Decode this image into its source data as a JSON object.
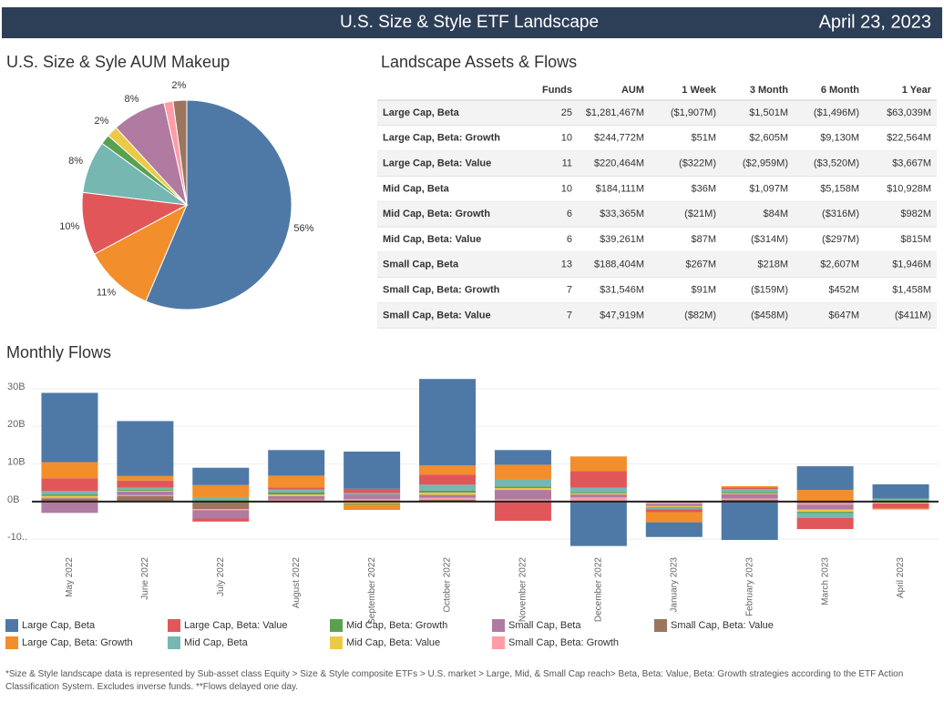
{
  "header": {
    "title": "U.S. Size & Style ETF Landscape",
    "date": "April 23, 2023"
  },
  "chart_data": [
    {
      "type": "pie",
      "title": "U.S. Size & Syle AUM Makeup",
      "values": [
        56.4,
        10.8,
        9.7,
        8.1,
        1.5,
        1.7,
        8.3,
        1.4,
        2.1
      ],
      "value_labels": [
        "56%",
        "11%",
        "10%",
        "8%",
        null,
        "2%",
        "8%",
        null,
        "2%"
      ],
      "colors": [
        "#4e79a7",
        "#f28e2b",
        "#e15759",
        "#76b7b2",
        "#59a14f",
        "#edc948",
        "#b07aa1",
        "#ff9da7",
        "#9c755f"
      ]
    },
    {
      "type": "bar",
      "stacked": true,
      "title": "Monthly Flows",
      "categories": [
        "May 2022",
        "June 2022",
        "July 2022",
        "August 2022",
        "September 2022",
        "October 2022",
        "November 2022",
        "December 2022",
        "January 2023",
        "February 2023",
        "March 2023",
        "April 2023"
      ],
      "ylim": [
        -14.3,
        34.1
      ],
      "yticks": [
        {
          "value": -10,
          "label": "-10.."
        },
        {
          "value": 0,
          "label": "0B"
        },
        {
          "value": 10,
          "label": "10B"
        },
        {
          "value": 20,
          "label": "20B"
        },
        {
          "value": 30,
          "label": "30B"
        }
      ],
      "grid": true,
      "series": [
        {
          "name": "Large Cap, Beta",
          "color": "#4e79a7",
          "values": [
            18.4,
            14.6,
            4.6,
            6.8,
            9.9,
            23.0,
            3.9,
            -11.8,
            -3.9,
            -10.2,
            6.3,
            3.8
          ]
        },
        {
          "name": "Large Cap, Beta: Growth",
          "color": "#f28e2b",
          "values": [
            4.3,
            1.2,
            3.2,
            3.1,
            -1.4,
            2.4,
            3.9,
            3.9,
            -2.7,
            0.3,
            3.1,
            -0.3
          ]
        },
        {
          "name": "Large Cap, Beta: Value",
          "color": "#e15759",
          "values": [
            3.4,
            1.9,
            -0.8,
            0.6,
            1.1,
            2.7,
            -5.1,
            4.4,
            -0.8,
            0.5,
            -3.0,
            -1.3
          ]
        },
        {
          "name": "Mid Cap, Beta",
          "color": "#76b7b2",
          "values": [
            0.9,
            0.5,
            0.8,
            0.8,
            0.4,
            1.6,
            1.9,
            1.2,
            -0.3,
            0.8,
            -1.2,
            0.4
          ]
        },
        {
          "name": "Mid Cap, Beta: Growth",
          "color": "#59a14f",
          "values": [
            0.4,
            0.3,
            0.2,
            0.5,
            -0.3,
            0.5,
            0.4,
            0.3,
            -0.2,
            0.3,
            -0.4,
            0.2
          ]
        },
        {
          "name": "Mid Cap, Beta: Value",
          "color": "#edc948",
          "values": [
            0.3,
            0.2,
            0.2,
            0.4,
            -0.5,
            0.6,
            0.5,
            0.3,
            -0.3,
            0.2,
            -0.6,
            -0.1
          ]
        },
        {
          "name": "Small Cap, Beta",
          "color": "#b07aa1",
          "values": [
            -3.0,
            1.0,
            -2.2,
            1.0,
            1.2,
            0.8,
            2.5,
            0.8,
            -0.6,
            1.2,
            -1.3,
            0.2
          ]
        },
        {
          "name": "Small Cap, Beta: Growth",
          "color": "#ff9da7",
          "values": [
            0.3,
            0.2,
            -0.3,
            0.2,
            0.4,
            0.5,
            0.3,
            0.8,
            -0.3,
            0.3,
            -0.4,
            -0.1
          ]
        },
        {
          "name": "Small Cap, Beta: Value",
          "color": "#9c755f",
          "values": [
            0.9,
            1.5,
            -2.0,
            0.3,
            0.3,
            0.5,
            0.3,
            0.3,
            -0.3,
            0.5,
            -0.4,
            -0.3
          ]
        }
      ]
    }
  ],
  "table": {
    "title": "Landscape Assets & Flows",
    "columns": [
      "Funds",
      "AUM",
      "1 Week",
      "3 Month",
      "6 Month",
      "1 Year"
    ],
    "rows": [
      [
        "Large Cap, Beta",
        "25",
        "$1,281,467M",
        "($1,907M)",
        "$1,501M",
        "($1,496M)",
        "$63,039M"
      ],
      [
        "Large Cap, Beta: Growth",
        "10",
        "$244,772M",
        "$51M",
        "$2,605M",
        "$9,130M",
        "$22,564M"
      ],
      [
        "Large Cap, Beta: Value",
        "11",
        "$220,464M",
        "($322M)",
        "($2,959M)",
        "($3,520M)",
        "$3,667M"
      ],
      [
        "Mid Cap, Beta",
        "10",
        "$184,111M",
        "$36M",
        "$1,097M",
        "$5,158M",
        "$10,928M"
      ],
      [
        "Mid Cap, Beta: Growth",
        "6",
        "$33,365M",
        "($21M)",
        "$84M",
        "($316M)",
        "$982M"
      ],
      [
        "Mid Cap, Beta: Value",
        "6",
        "$39,261M",
        "$87M",
        "($314M)",
        "($297M)",
        "$815M"
      ],
      [
        "Small Cap, Beta",
        "13",
        "$188,404M",
        "$267M",
        "$218M",
        "$2,607M",
        "$1,946M"
      ],
      [
        "Small Cap, Beta: Growth",
        "7",
        "$31,546M",
        "$91M",
        "($159M)",
        "$452M",
        "$1,458M"
      ],
      [
        "Small Cap, Beta: Value",
        "7",
        "$47,919M",
        "($82M)",
        "($458M)",
        "$647M",
        "($411M)"
      ]
    ]
  },
  "footnote": "*Size & Style landscape data is represented by Sub-asset class Equity > Size & Style composite ETFs > U.S. market > Large, Mid, & Small Cap reach> Beta, Beta: Value, Beta: Growth strategies according to the ETF Action Classification System. Excludes inverse funds. **Flows delayed one day."
}
